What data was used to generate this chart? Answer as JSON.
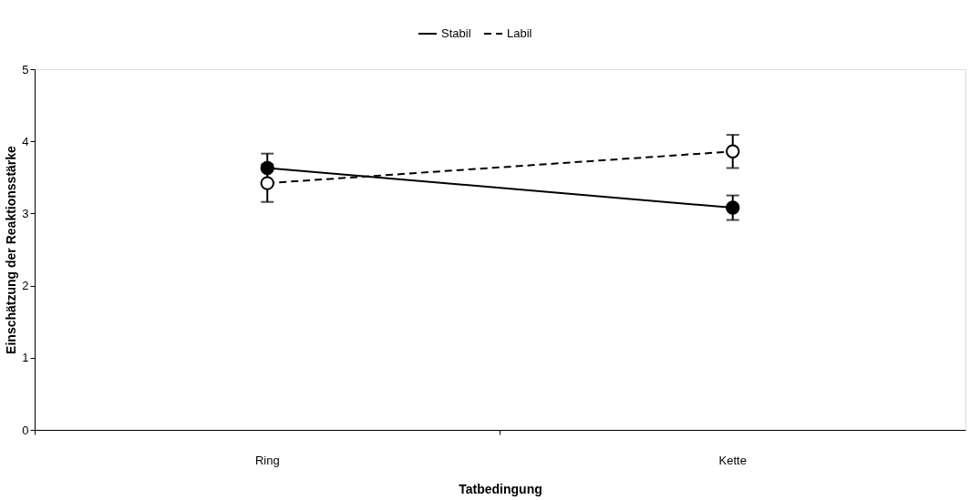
{
  "chart_data": {
    "type": "line",
    "xlabel": "Tatbedingung",
    "ylabel": "Einschätzung der Reaktionsstärke",
    "categories": [
      "Ring",
      "Kette"
    ],
    "series": [
      {
        "name": "Stabil",
        "color": "#000000",
        "line_style": "solid",
        "values": [
          3.63,
          3.08
        ],
        "errors": [
          0.2,
          0.17
        ]
      },
      {
        "name": "Labil",
        "color": "#000000",
        "line_style": "dashed",
        "values": [
          3.42,
          3.86
        ],
        "errors": [
          0.26,
          0.23
        ]
      }
    ],
    "ylim": [
      0,
      5
    ],
    "yticks": [
      0,
      1,
      2,
      3,
      4,
      5
    ],
    "grid": false,
    "legend": "top",
    "marker": "circle"
  }
}
